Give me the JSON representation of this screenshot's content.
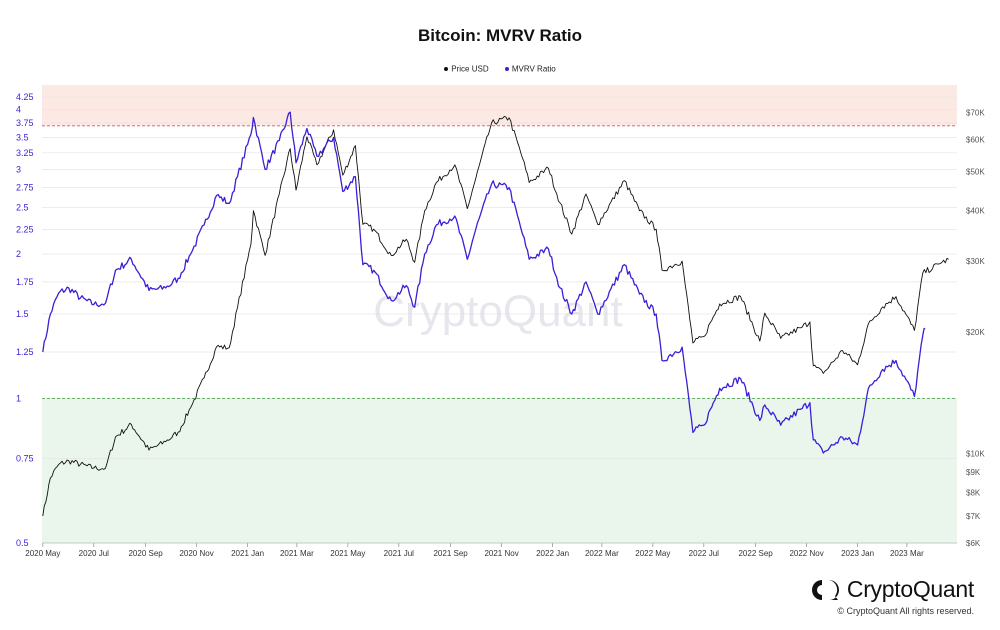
{
  "page": {
    "title": "Bitcoin: MVRV Ratio",
    "watermark": "CryptoQuant",
    "brand": "CryptoQuant",
    "copyright": "© CryptoQuant All rights reserved."
  },
  "legend": [
    {
      "label": "Price USD",
      "color": "#111111"
    },
    {
      "label": "MVRV Ratio",
      "color": "#3b1fd6"
    }
  ],
  "colors": {
    "price": "#111111",
    "mvrv": "#3b1fd6",
    "axis_left_text": "#3b1fd6",
    "axis_right_text": "#555555",
    "band_high": "#fde9e4",
    "band_low": "#eaf6ec",
    "line_high": "#e05656",
    "line_low": "#4caf50"
  },
  "chart_data": {
    "type": "line",
    "title": "Bitcoin: MVRV Ratio",
    "left_axis": {
      "series": "MVRV Ratio",
      "scale": "log",
      "range": [
        0.5,
        4.5
      ],
      "ticks": [
        "0.5",
        "0.75",
        "1",
        "1.25",
        "1.5",
        "1.75",
        "2",
        "2.25",
        "2.5",
        "2.75",
        "3",
        "3.25",
        "3.5",
        "3.75",
        "4",
        "4.25"
      ]
    },
    "right_axis": {
      "series": "Price USD",
      "scale": "log",
      "range": [
        6000,
        82000
      ],
      "ticks": [
        "$6K",
        "$7K",
        "$8K",
        "$9K",
        "$10K",
        "$20K",
        "$30K",
        "$40K",
        "$50K",
        "$60K",
        "$70K"
      ]
    },
    "x_ticks": [
      "2020 May",
      "2020 Jul",
      "2020 Sep",
      "2020 Nov",
      "2021 Jan",
      "2021 Mar",
      "2021 May",
      "2021 Jul",
      "2021 Sep",
      "2021 Nov",
      "2022 Jan",
      "2022 Mar",
      "2022 May",
      "2022 Jul",
      "2022 Sep",
      "2022 Nov",
      "2023 Jan",
      "2023 Mar"
    ],
    "x_range": [
      "2020-04-30",
      "2023-04-30"
    ],
    "bands": [
      {
        "from": 3.7,
        "to": 4.5,
        "color": "#fde9e4",
        "threshold": 3.7
      },
      {
        "from": 0.5,
        "to": 1.0,
        "color": "#eaf6ec",
        "threshold": 1.0
      }
    ],
    "grid": true,
    "legend_position": "top-center",
    "series": [
      {
        "name": "Price USD",
        "axis": "right",
        "points": [
          [
            "2020-05-01",
            7000
          ],
          [
            "2020-05-10",
            8700
          ],
          [
            "2020-05-20",
            9400
          ],
          [
            "2020-06-01",
            9600
          ],
          [
            "2020-06-15",
            9400
          ],
          [
            "2020-07-01",
            9200
          ],
          [
            "2020-07-15",
            9200
          ],
          [
            "2020-07-27",
            11000
          ],
          [
            "2020-08-15",
            11800
          ],
          [
            "2020-09-05",
            10200
          ],
          [
            "2020-09-25",
            10700
          ],
          [
            "2020-10-10",
            11300
          ],
          [
            "2020-10-25",
            13000
          ],
          [
            "2020-11-10",
            15400
          ],
          [
            "2020-11-25",
            18400
          ],
          [
            "2020-12-10",
            18300
          ],
          [
            "2020-12-20",
            23000
          ],
          [
            "2021-01-05",
            33000
          ],
          [
            "2021-01-08",
            40000
          ],
          [
            "2021-01-22",
            31000
          ],
          [
            "2021-02-08",
            44000
          ],
          [
            "2021-02-21",
            57000
          ],
          [
            "2021-02-28",
            45000
          ],
          [
            "2021-03-13",
            61000
          ],
          [
            "2021-03-25",
            52000
          ],
          [
            "2021-04-14",
            63500
          ],
          [
            "2021-04-25",
            49000
          ],
          [
            "2021-05-10",
            58000
          ],
          [
            "2021-05-19",
            37000
          ],
          [
            "2021-06-01",
            36000
          ],
          [
            "2021-06-22",
            31000
          ],
          [
            "2021-07-10",
            34000
          ],
          [
            "2021-07-20",
            29800
          ],
          [
            "2021-08-01",
            40000
          ],
          [
            "2021-08-15",
            47000
          ],
          [
            "2021-09-06",
            52000
          ],
          [
            "2021-09-21",
            40500
          ],
          [
            "2021-10-01",
            48000
          ],
          [
            "2021-10-20",
            66000
          ],
          [
            "2021-11-10",
            68000
          ],
          [
            "2021-11-26",
            54000
          ],
          [
            "2021-12-04",
            47000
          ],
          [
            "2021-12-27",
            51000
          ],
          [
            "2022-01-10",
            41800
          ],
          [
            "2022-01-24",
            35000
          ],
          [
            "2022-02-10",
            44000
          ],
          [
            "2022-02-24",
            37000
          ],
          [
            "2022-03-28",
            47500
          ],
          [
            "2022-04-15",
            40000
          ],
          [
            "2022-05-05",
            36000
          ],
          [
            "2022-05-12",
            28500
          ],
          [
            "2022-06-05",
            30000
          ],
          [
            "2022-06-18",
            18800
          ],
          [
            "2022-07-01",
            19500
          ],
          [
            "2022-07-20",
            23500
          ],
          [
            "2022-08-14",
            24500
          ],
          [
            "2022-09-06",
            19000
          ],
          [
            "2022-09-12",
            22300
          ],
          [
            "2022-10-01",
            19300
          ],
          [
            "2022-10-25",
            20500
          ],
          [
            "2022-11-05",
            21200
          ],
          [
            "2022-11-09",
            16500
          ],
          [
            "2022-11-21",
            15800
          ],
          [
            "2022-12-14",
            18000
          ],
          [
            "2023-01-01",
            16600
          ],
          [
            "2023-01-14",
            21000
          ],
          [
            "2023-01-31",
            23100
          ],
          [
            "2023-02-16",
            24500
          ],
          [
            "2023-03-10",
            20200
          ],
          [
            "2023-03-20",
            28000
          ],
          [
            "2023-04-10",
            29600
          ],
          [
            "2023-04-20",
            30300
          ]
        ]
      },
      {
        "name": "MVRV Ratio",
        "axis": "left",
        "points": [
          [
            "2020-05-01",
            1.25
          ],
          [
            "2020-05-10",
            1.5
          ],
          [
            "2020-05-20",
            1.66
          ],
          [
            "2020-06-01",
            1.7
          ],
          [
            "2020-06-15",
            1.62
          ],
          [
            "2020-07-01",
            1.57
          ],
          [
            "2020-07-15",
            1.58
          ],
          [
            "2020-07-27",
            1.85
          ],
          [
            "2020-08-15",
            1.95
          ],
          [
            "2020-09-05",
            1.68
          ],
          [
            "2020-09-25",
            1.7
          ],
          [
            "2020-10-10",
            1.78
          ],
          [
            "2020-10-25",
            2.0
          ],
          [
            "2020-11-10",
            2.3
          ],
          [
            "2020-11-25",
            2.65
          ],
          [
            "2020-12-10",
            2.55
          ],
          [
            "2020-12-20",
            2.9
          ],
          [
            "2021-01-05",
            3.55
          ],
          [
            "2021-01-08",
            3.85
          ],
          [
            "2021-01-22",
            3.0
          ],
          [
            "2021-02-08",
            3.45
          ],
          [
            "2021-02-21",
            3.95
          ],
          [
            "2021-02-28",
            3.1
          ],
          [
            "2021-03-13",
            3.65
          ],
          [
            "2021-03-25",
            3.2
          ],
          [
            "2021-04-14",
            3.5
          ],
          [
            "2021-04-25",
            2.7
          ],
          [
            "2021-05-10",
            2.9
          ],
          [
            "2021-05-19",
            1.9
          ],
          [
            "2021-06-01",
            1.85
          ],
          [
            "2021-06-22",
            1.6
          ],
          [
            "2021-07-10",
            1.72
          ],
          [
            "2021-07-20",
            1.55
          ],
          [
            "2021-08-01",
            2.0
          ],
          [
            "2021-08-15",
            2.3
          ],
          [
            "2021-09-06",
            2.4
          ],
          [
            "2021-09-21",
            1.95
          ],
          [
            "2021-10-01",
            2.25
          ],
          [
            "2021-10-20",
            2.8
          ],
          [
            "2021-11-10",
            2.75
          ],
          [
            "2021-11-26",
            2.2
          ],
          [
            "2021-12-04",
            1.95
          ],
          [
            "2021-12-27",
            2.05
          ],
          [
            "2022-01-10",
            1.7
          ],
          [
            "2022-01-24",
            1.5
          ],
          [
            "2022-02-10",
            1.75
          ],
          [
            "2022-02-24",
            1.5
          ],
          [
            "2022-03-28",
            1.9
          ],
          [
            "2022-04-15",
            1.65
          ],
          [
            "2022-05-05",
            1.5
          ],
          [
            "2022-05-12",
            1.2
          ],
          [
            "2022-06-05",
            1.28
          ],
          [
            "2022-06-18",
            0.85
          ],
          [
            "2022-07-01",
            0.88
          ],
          [
            "2022-07-20",
            1.05
          ],
          [
            "2022-08-14",
            1.1
          ],
          [
            "2022-09-06",
            0.9
          ],
          [
            "2022-09-12",
            0.97
          ],
          [
            "2022-10-01",
            0.88
          ],
          [
            "2022-10-25",
            0.95
          ],
          [
            "2022-11-05",
            0.98
          ],
          [
            "2022-11-09",
            0.82
          ],
          [
            "2022-11-21",
            0.77
          ],
          [
            "2022-12-14",
            0.83
          ],
          [
            "2023-01-01",
            0.8
          ],
          [
            "2023-01-14",
            1.05
          ],
          [
            "2023-01-31",
            1.15
          ],
          [
            "2023-02-16",
            1.2
          ],
          [
            "2023-03-10",
            1.01
          ],
          [
            "2023-03-20",
            1.35
          ],
          [
            "2023-03-23",
            1.4
          ]
        ]
      }
    ]
  }
}
